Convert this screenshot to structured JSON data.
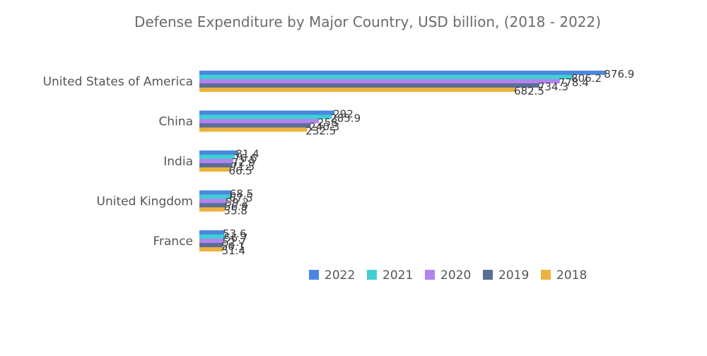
{
  "chart_data": {
    "type": "bar",
    "orientation": "horizontal",
    "title": "Defense Expenditure by Major Country, USD billion, (2018 - 2022)",
    "xlabel": "",
    "ylabel": "",
    "categories": [
      "United States of America",
      "China",
      "India",
      "United Kingdom",
      "France"
    ],
    "xlim": [
      0,
      1000
    ],
    "grid": false,
    "legend_position": "bottom-center",
    "series": [
      {
        "name": "2022",
        "color": "#4a88e0",
        "values": [
          876.9,
          292,
          81.4,
          68.5,
          53.6
        ]
      },
      {
        "name": "2021",
        "color": "#3fcfd4",
        "values": [
          806.2,
          285.9,
          76.6,
          67.5,
          56.7
        ]
      },
      {
        "name": "2020",
        "color": "#b383f0",
        "values": [
          778.4,
          258,
          72.9,
          59.2,
          52.7
        ]
      },
      {
        "name": "2019",
        "color": "#5a6e96",
        "values": [
          734.3,
          240.3,
          71.5,
          56.9,
          50.1
        ]
      },
      {
        "name": "2018",
        "color": "#ecb23e",
        "values": [
          682.5,
          232.5,
          66.5,
          55.8,
          51.4
        ]
      }
    ]
  }
}
